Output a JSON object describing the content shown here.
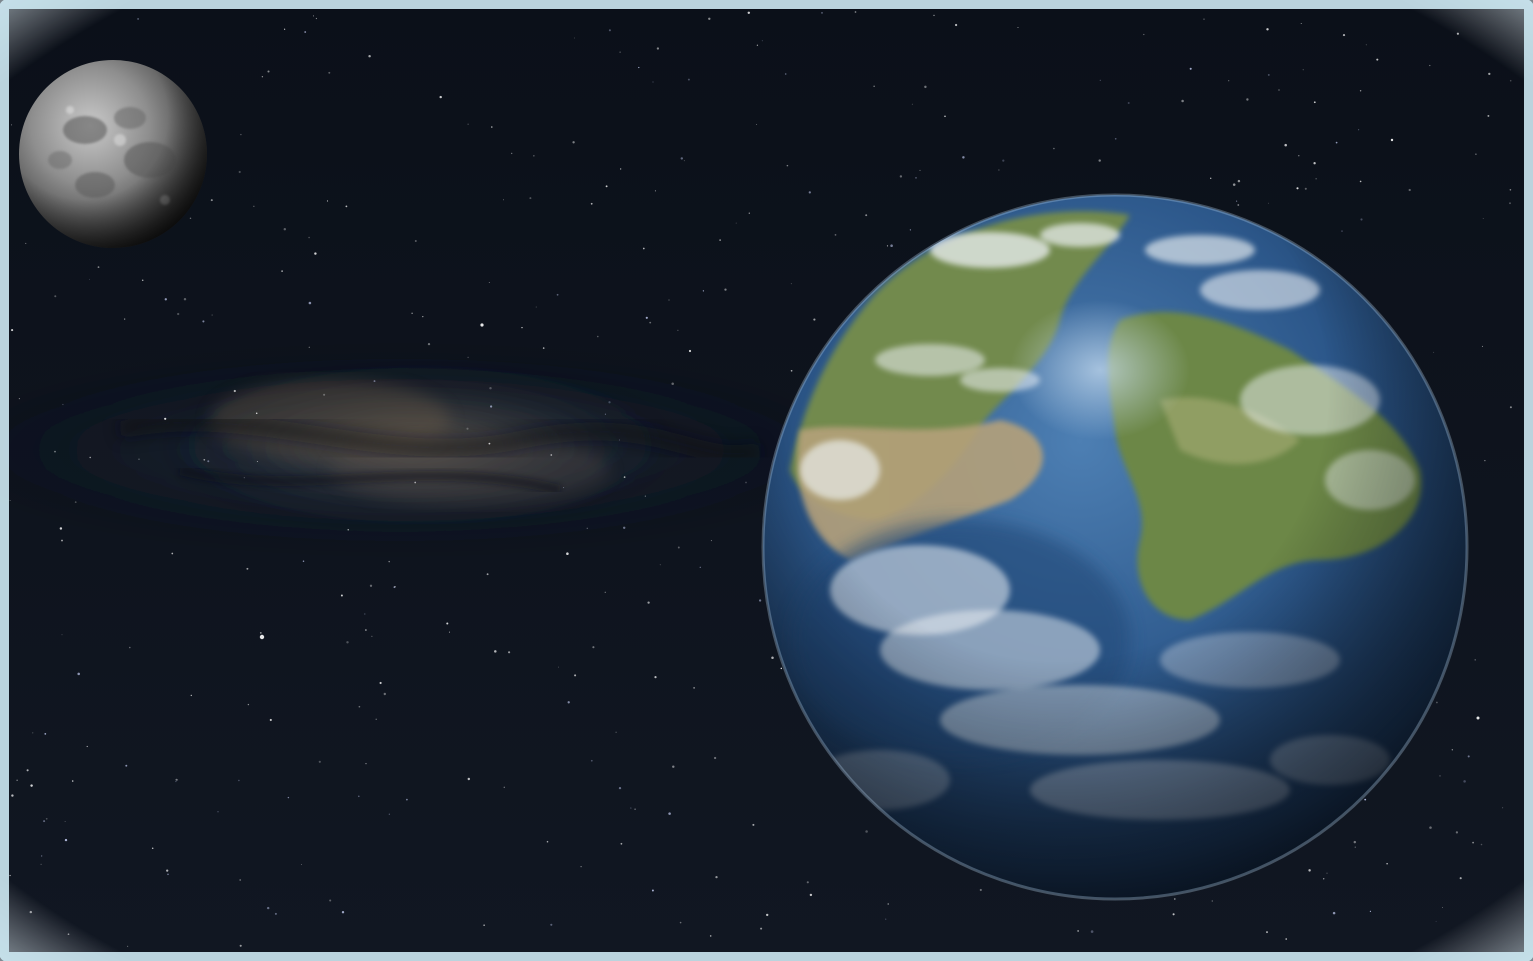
{
  "scene": {
    "subjects": [
      "moon",
      "earth-like-planet",
      "milky-way-band",
      "starfield"
    ]
  },
  "colors": {
    "frame_border": "#bfe3ef",
    "space_top": "#0a0f18",
    "space_bottom": "#101520",
    "milky_way": "#6b5a45",
    "milky_way_blue": "#3a4d63",
    "ocean": "#2e5f93",
    "ocean_dark": "#10223c",
    "land_green": "#6f8a4a",
    "land_tan": "#b9a77e",
    "cloud": "#eef2f5",
    "moon_light": "#b0b0b0",
    "moon_dark": "#3a3a3a"
  }
}
